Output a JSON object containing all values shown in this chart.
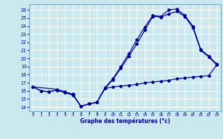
{
  "xlabel": "Graphe des températures (°c)",
  "bg_color": "#cce8ef",
  "line_color": "#00008b",
  "grid_color": "#ffffff",
  "xlim": [
    -0.5,
    23.5
  ],
  "ylim": [
    13.5,
    26.7
  ],
  "yticks": [
    14,
    15,
    16,
    17,
    18,
    19,
    20,
    21,
    22,
    23,
    24,
    25,
    26
  ],
  "xticks": [
    0,
    1,
    2,
    3,
    4,
    5,
    6,
    7,
    8,
    9,
    10,
    11,
    12,
    13,
    14,
    15,
    16,
    17,
    18,
    19,
    20,
    21,
    22,
    23
  ],
  "line1_x": [
    0,
    1,
    2,
    3,
    4,
    5,
    6,
    7,
    8,
    9,
    10,
    11,
    12,
    13,
    14,
    15,
    16,
    17,
    18,
    19,
    20,
    21,
    22,
    23
  ],
  "line1_y": [
    16.5,
    16.0,
    15.9,
    16.1,
    15.8,
    15.5,
    14.1,
    14.4,
    14.6,
    16.4,
    17.5,
    19.0,
    20.6,
    22.3,
    23.9,
    25.3,
    25.2,
    26.0,
    26.1,
    25.3,
    24.0,
    21.1,
    20.3,
    19.3
  ],
  "line2_x": [
    0,
    1,
    2,
    3,
    4,
    5,
    6,
    7,
    8,
    9,
    10,
    11,
    12,
    13,
    14,
    15,
    16,
    17,
    18,
    19,
    20,
    21,
    22,
    23
  ],
  "line2_y": [
    16.5,
    16.0,
    15.9,
    16.1,
    15.8,
    15.5,
    14.1,
    14.4,
    14.6,
    16.3,
    16.5,
    16.6,
    16.7,
    16.8,
    17.0,
    17.1,
    17.2,
    17.3,
    17.5,
    17.6,
    17.7,
    17.8,
    17.9,
    19.2
  ],
  "line3_x": [
    0,
    3,
    4,
    5,
    6,
    7,
    8,
    9,
    10,
    11,
    12,
    13,
    14,
    15,
    16,
    17,
    18,
    19,
    20,
    21,
    22,
    23
  ],
  "line3_y": [
    16.5,
    16.2,
    15.9,
    15.6,
    14.1,
    14.4,
    14.6,
    16.3,
    17.4,
    18.8,
    20.3,
    21.8,
    23.5,
    25.2,
    25.1,
    25.5,
    25.8,
    25.2,
    23.8,
    21.0,
    20.2,
    19.2
  ]
}
